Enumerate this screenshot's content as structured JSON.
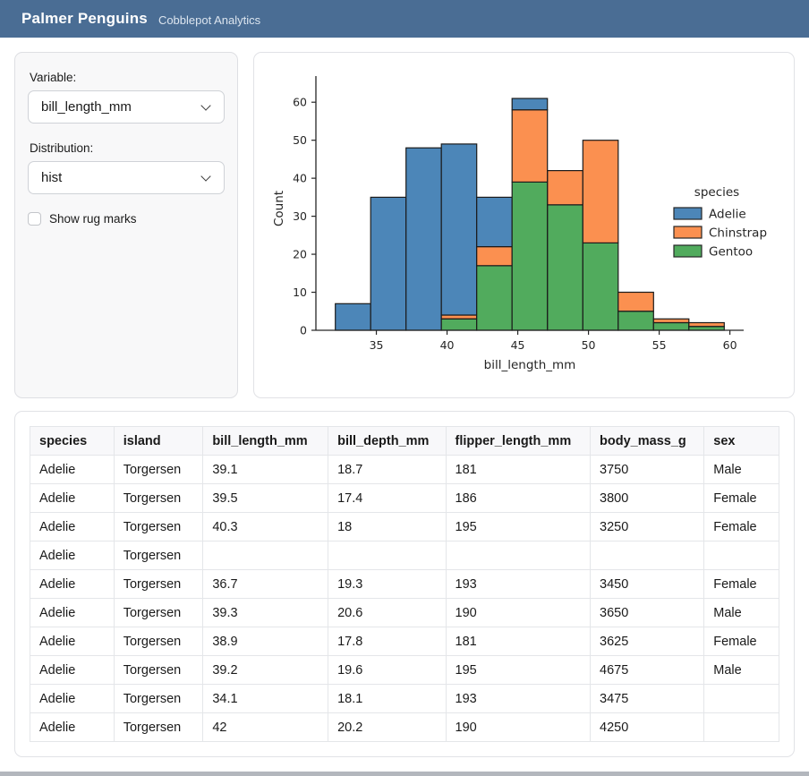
{
  "header": {
    "title": "Palmer Penguins",
    "subtitle": "Cobblepot Analytics",
    "bg_color": "#4a6d94"
  },
  "sidebar": {
    "variable_label": "Variable:",
    "variable_value": "bill_length_mm",
    "distribution_label": "Distribution:",
    "distribution_value": "hist",
    "rug_label": "Show rug marks",
    "rug_checked": false
  },
  "chart_data": {
    "type": "bar",
    "subtype": "stacked-histogram",
    "title": "",
    "xlabel": "bill_length_mm",
    "ylabel": "Count",
    "legend_title": "species",
    "legend_position": "right-inside",
    "grid": false,
    "bin_edges": [
      32.1,
      34.6,
      37.1,
      39.6,
      42.1,
      44.6,
      47.1,
      49.6,
      52.1,
      54.6,
      57.1,
      59.6
    ],
    "series": [
      {
        "name": "Adelie",
        "color": "#4c86b8",
        "values": [
          7,
          35,
          48,
          45,
          13,
          3,
          0,
          0,
          0,
          0,
          0
        ]
      },
      {
        "name": "Chinstrap",
        "color": "#fb9050",
        "values": [
          0,
          0,
          0,
          1,
          5,
          19,
          9,
          27,
          5,
          1,
          1
        ]
      },
      {
        "name": "Gentoo",
        "color": "#51ab5d",
        "values": [
          0,
          0,
          0,
          3,
          17,
          39,
          33,
          23,
          5,
          2,
          1
        ]
      }
    ],
    "stack_order": [
      "Gentoo",
      "Chinstrap",
      "Adelie"
    ],
    "bar_edge_color": "#1b1b1b",
    "x_ticks": [
      35,
      40,
      45,
      50,
      55,
      60
    ],
    "y_ticks": [
      0,
      10,
      20,
      30,
      40,
      50,
      60
    ],
    "xlim": [
      30.725,
      60.975
    ],
    "ylim": [
      0,
      64.05
    ]
  },
  "table": {
    "columns": [
      "species",
      "island",
      "bill_length_mm",
      "bill_depth_mm",
      "flipper_length_mm",
      "body_mass_g",
      "sex"
    ],
    "col_widths_pct": [
      11.2,
      11.9,
      16.7,
      15.7,
      19.3,
      15.2,
      10.0
    ],
    "rows": [
      [
        "Adelie",
        "Torgersen",
        "39.1",
        "18.7",
        "181",
        "3750",
        "Male"
      ],
      [
        "Adelie",
        "Torgersen",
        "39.5",
        "17.4",
        "186",
        "3800",
        "Female"
      ],
      [
        "Adelie",
        "Torgersen",
        "40.3",
        "18",
        "195",
        "3250",
        "Female"
      ],
      [
        "Adelie",
        "Torgersen",
        "",
        "",
        "",
        "",
        ""
      ],
      [
        "Adelie",
        "Torgersen",
        "36.7",
        "19.3",
        "193",
        "3450",
        "Female"
      ],
      [
        "Adelie",
        "Torgersen",
        "39.3",
        "20.6",
        "190",
        "3650",
        "Male"
      ],
      [
        "Adelie",
        "Torgersen",
        "38.9",
        "17.8",
        "181",
        "3625",
        "Female"
      ],
      [
        "Adelie",
        "Torgersen",
        "39.2",
        "19.6",
        "195",
        "4675",
        "Male"
      ],
      [
        "Adelie",
        "Torgersen",
        "34.1",
        "18.1",
        "193",
        "3475",
        ""
      ],
      [
        "Adelie",
        "Torgersen",
        "42",
        "20.2",
        "190",
        "4250",
        ""
      ]
    ]
  }
}
